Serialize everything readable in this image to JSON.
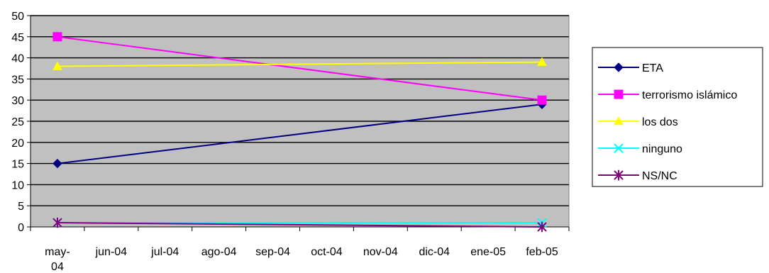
{
  "chart_data": {
    "type": "line",
    "categories": [
      "may-04",
      "jun-04",
      "jul-04",
      "ago-04",
      "sep-04",
      "oct-04",
      "nov-04",
      "dic-04",
      "ene-05",
      "feb-05"
    ],
    "category_label_lines": [
      [
        "may-",
        "04"
      ],
      [
        "jun-04"
      ],
      [
        "jul-04"
      ],
      [
        "ago-04"
      ],
      [
        "sep-04"
      ],
      [
        "oct-04"
      ],
      [
        "nov-04"
      ],
      [
        "dic-04"
      ],
      [
        "ene-05"
      ],
      [
        "feb-05"
      ]
    ],
    "ylim": [
      0,
      50
    ],
    "yticks": [
      0,
      5,
      10,
      15,
      20,
      25,
      30,
      35,
      40,
      45,
      50
    ],
    "grid": true,
    "legend_position": "right",
    "plot_background": "#c0c0c0",
    "series": [
      {
        "name": "ETA",
        "x": [
          "may-04",
          "feb-05"
        ],
        "values": [
          15,
          29
        ],
        "color": "#000080",
        "marker": "diamond"
      },
      {
        "name": "terrorismo islámico",
        "x": [
          "may-04",
          "feb-05"
        ],
        "values": [
          45,
          30
        ],
        "color": "#ff00ff",
        "marker": "square"
      },
      {
        "name": "los dos",
        "x": [
          "may-04",
          "feb-05"
        ],
        "values": [
          38,
          39
        ],
        "color": "#ffff00",
        "marker": "triangle"
      },
      {
        "name": "ninguno",
        "x": [
          "may-04",
          "feb-05"
        ],
        "values": [
          1,
          1
        ],
        "color": "#00ffff",
        "marker": "x"
      },
      {
        "name": "NS/NC",
        "x": [
          "may-04",
          "feb-05"
        ],
        "values": [
          1,
          0
        ],
        "color": "#800080",
        "marker": "star"
      }
    ]
  }
}
